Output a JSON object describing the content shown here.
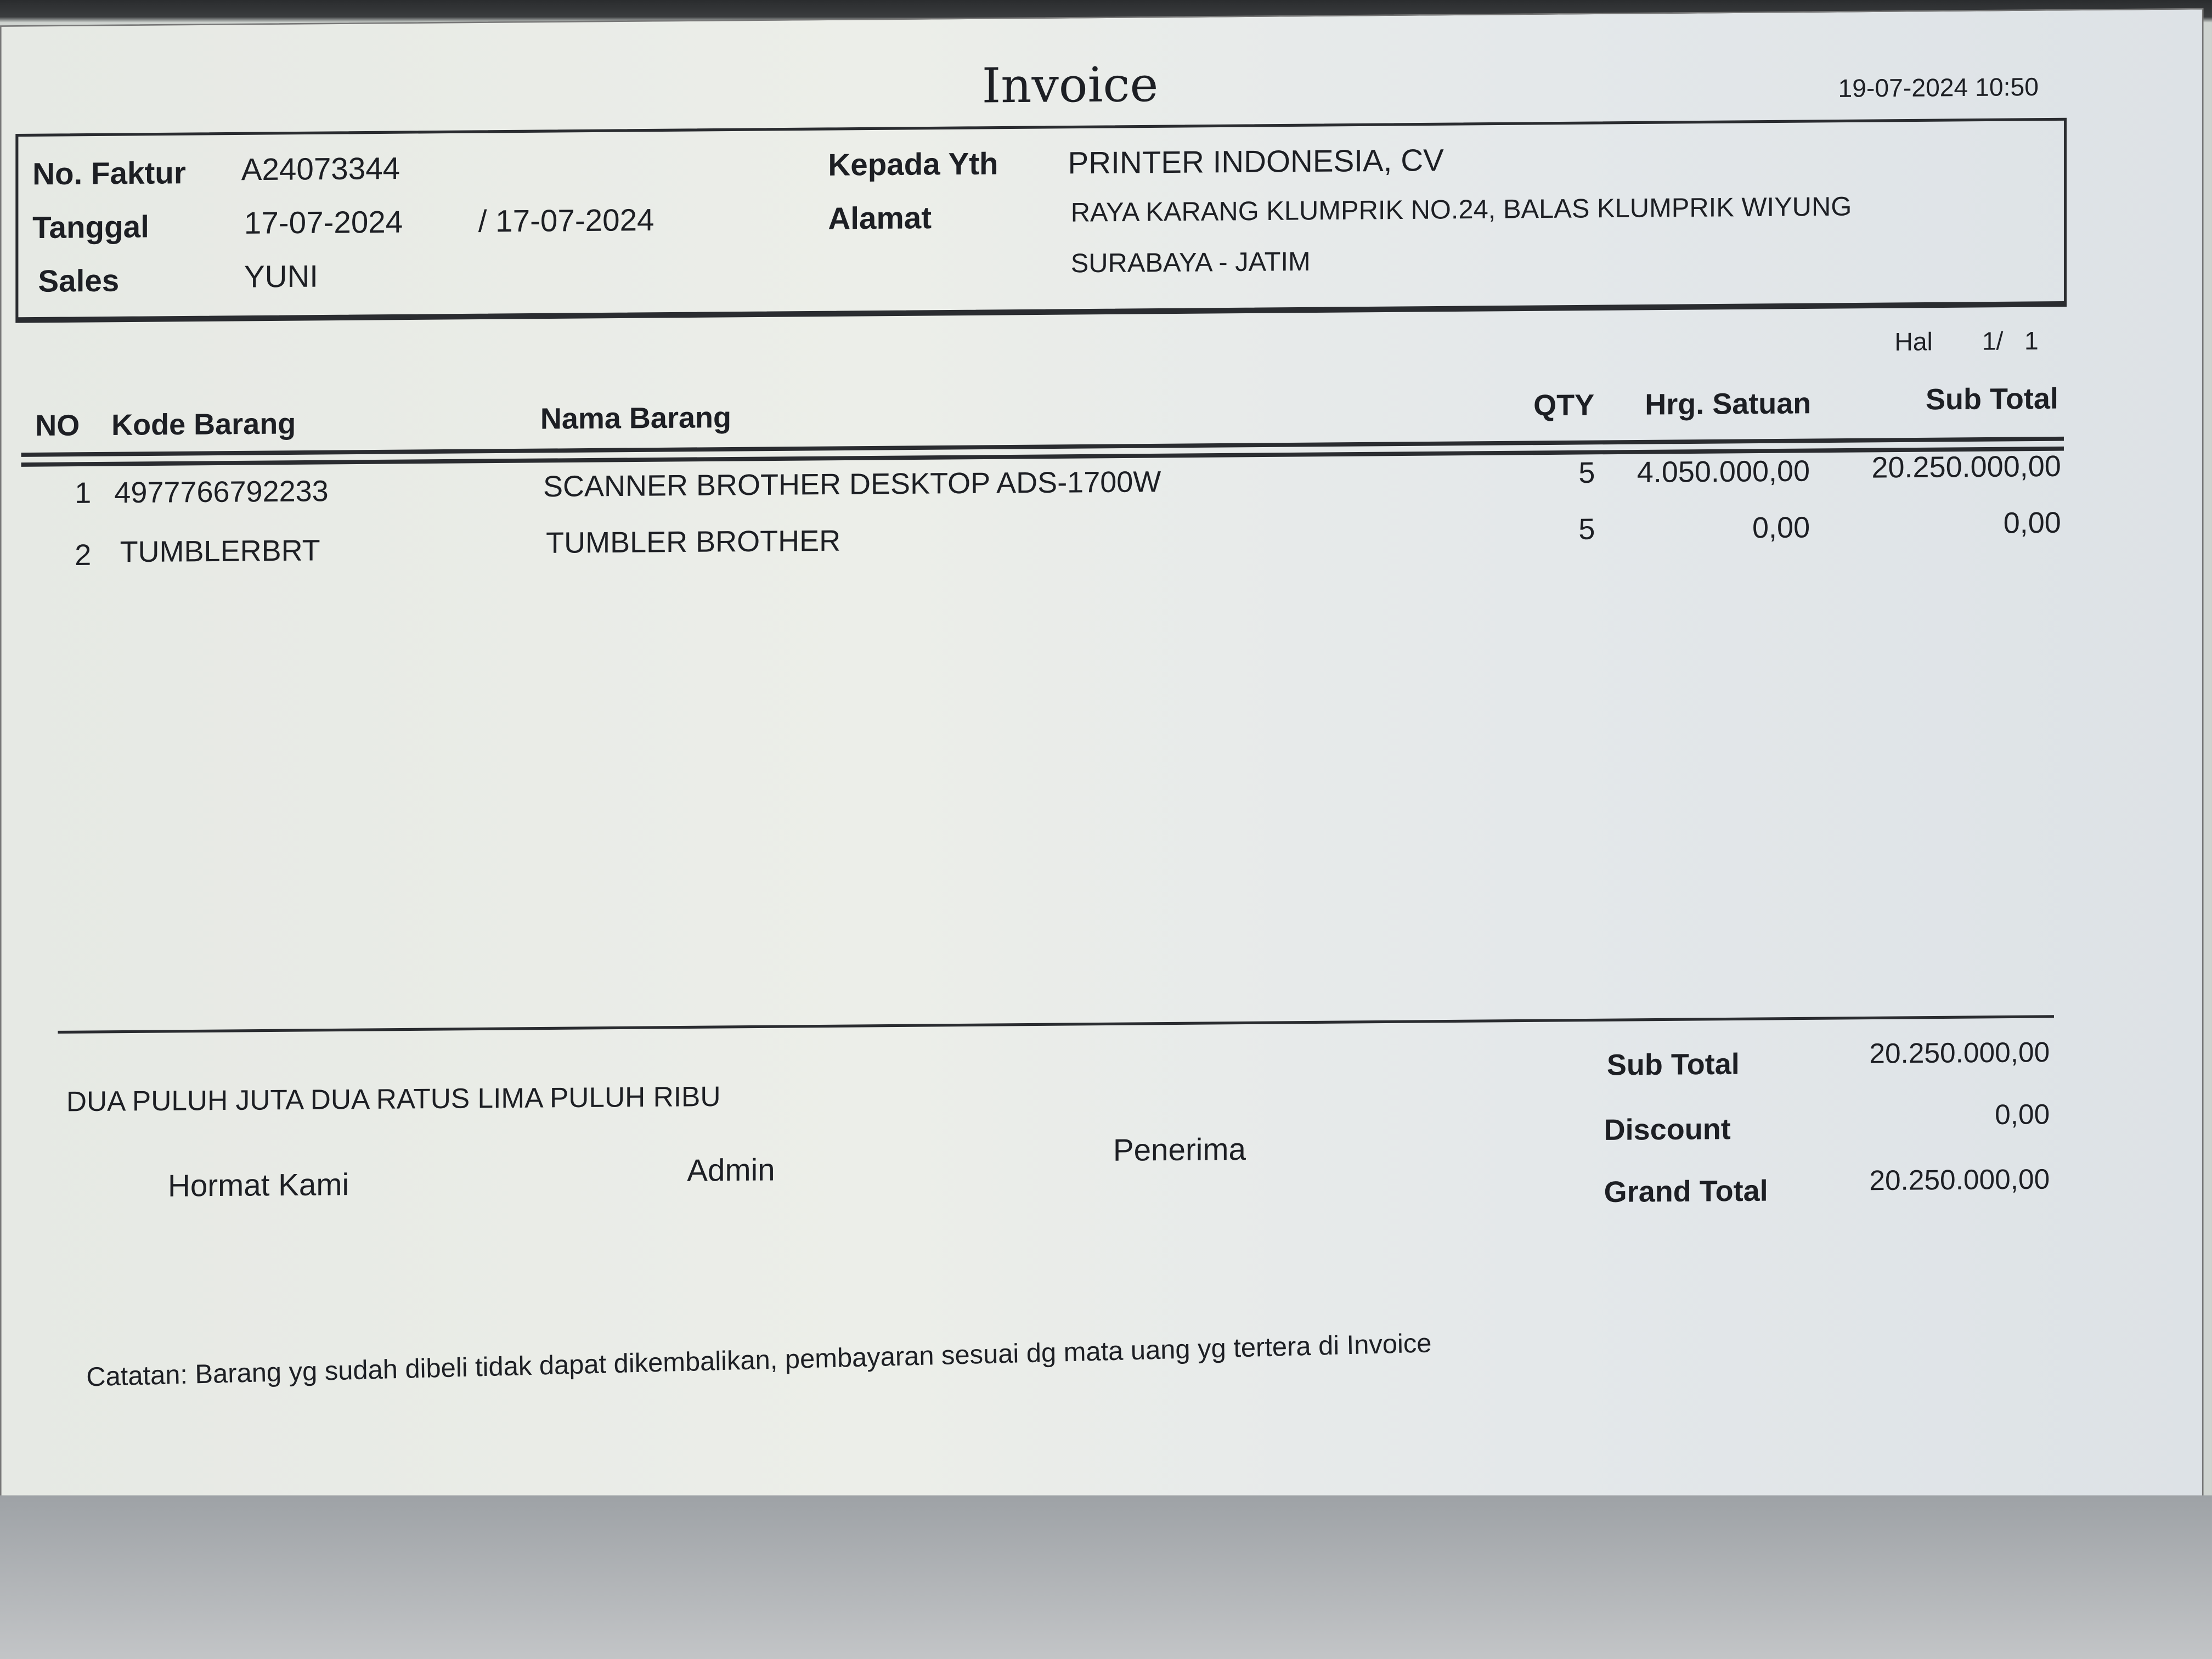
{
  "title": "Invoice",
  "printed_at": "19-07-2024 10:50",
  "header": {
    "no_faktur_label": "No. Faktur",
    "no_faktur": "A24073344",
    "tanggal_label": "Tanggal",
    "tanggal": "17-07-2024",
    "tanggal2": "/ 17-07-2024",
    "sales_label": "Sales",
    "sales": "YUNI",
    "kepada_label": "Kepada Yth",
    "kepada": "PRINTER INDONESIA, CV",
    "alamat_label": "Alamat",
    "alamat1": "RAYA KARANG KLUMPRIK NO.24, BALAS KLUMPRIK WIYUNG",
    "alamat2": "SURABAYA - JATIM"
  },
  "page": {
    "label": "Hal",
    "value": "1/   1"
  },
  "columns": {
    "no": "NO",
    "kode": "Kode Barang",
    "nama": "Nama Barang",
    "qty": "QTY",
    "harga": "Hrg. Satuan",
    "subtotal": "Sub Total"
  },
  "items": [
    {
      "no": "1",
      "kode": "4977766792233",
      "nama": "SCANNER BROTHER DESKTOP ADS-1700W",
      "qty": "5",
      "harga": "4.050.000,00",
      "subtotal": "20.250.000,00"
    },
    {
      "no": "2",
      "kode": "TUMBLERBRT",
      "nama": "TUMBLER BROTHER",
      "qty": "5",
      "harga": "0,00",
      "subtotal": "0,00"
    }
  ],
  "terbilang": "DUA PULUH JUTA DUA RATUS LIMA PULUH RIBU",
  "signatures": {
    "hormat": "Hormat Kami",
    "admin": "Admin",
    "penerima": "Penerima"
  },
  "totals": {
    "subtotal_label": "Sub Total",
    "subtotal": "20.250.000,00",
    "discount_label": "Discount",
    "discount": "0,00",
    "grand_label": "Grand Total",
    "grand": "20.250.000,00"
  },
  "note": "Catatan: Barang yg sudah dibeli tidak dapat dikembalikan, pembayaran sesuai dg mata uang yg tertera di Invoice"
}
